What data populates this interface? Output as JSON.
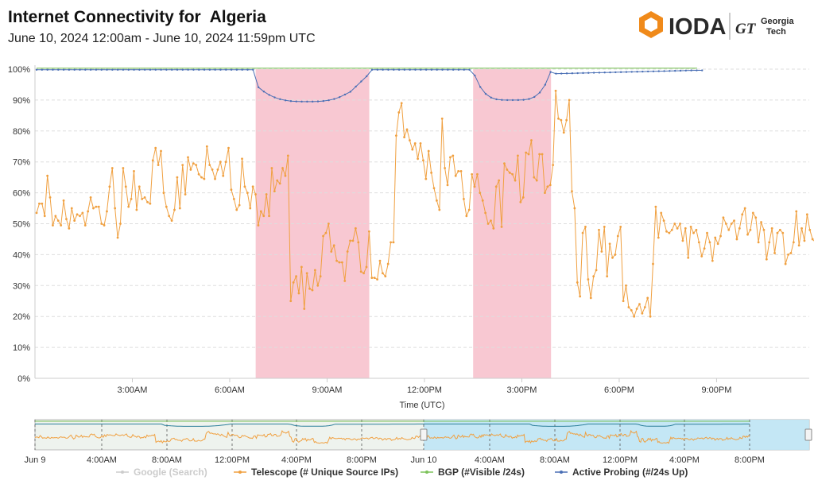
{
  "header": {
    "title": "Internet Connectivity for  Algeria",
    "subtitle": "June 10, 2024 12:00am - June 10, 2024 11:59pm UTC",
    "logo_text": "IODA",
    "partner_text_line1": "Georgia",
    "partner_text_line2": "Tech",
    "partner_mark": "GT"
  },
  "colors": {
    "telescope": "#f0a040",
    "bgp": "#7cc25a",
    "active_probing": "#4a6fb5",
    "google": "#bbbbbb",
    "outage": "#f8c8d2",
    "navigator_selection": "#bfe6f5",
    "logo_orange": "#f08a1a"
  },
  "chart_data": {
    "type": "line",
    "xlabel": "Time (UTC)",
    "ylabel": "",
    "ylim": [
      0,
      100
    ],
    "y_ticks": [
      "0%",
      "10%",
      "20%",
      "30%",
      "40%",
      "50%",
      "60%",
      "70%",
      "80%",
      "90%",
      "100%"
    ],
    "x_ticks": [
      "3:00AM",
      "6:00AM",
      "9:00AM",
      "12:00PM",
      "3:00PM",
      "6:00PM",
      "9:00PM"
    ],
    "x_tick_hours": [
      3,
      6,
      9,
      12,
      15,
      18,
      21
    ],
    "x_unit": "hours since June 10, 2024 12:00am UTC",
    "outage_periods_hours": [
      [
        6.8,
        10.3
      ],
      [
        13.5,
        15.9
      ]
    ],
    "series": [
      {
        "name": "Telescope (# Unique Source IPs)",
        "key": "telescope",
        "x_start_hours": 0.05,
        "x_step_hours": 0.0833,
        "values": [
          53.5,
          56.5,
          56.5,
          52.5,
          65.5,
          58.5,
          49.5,
          52.5,
          51,
          49.5,
          57.5,
          51.5,
          48.5,
          55,
          51,
          53,
          52.5,
          53.5,
          49.5,
          54,
          58.5,
          55,
          55.5,
          55.5,
          50,
          49.5,
          54,
          62,
          68,
          55,
          45.5,
          50,
          68,
          62,
          55.5,
          58,
          67,
          54.5,
          62,
          58,
          58.5,
          57,
          56.5,
          70.5,
          74.5,
          69,
          73.5,
          60,
          55.5,
          52.5,
          51,
          54.5,
          65,
          55,
          69,
          59.5,
          71.5,
          67.5,
          69.5,
          69,
          66,
          65,
          64.5,
          75,
          69,
          67.5,
          64.5,
          67.5,
          70,
          65.5,
          70,
          74.5,
          61,
          58,
          54.5,
          56,
          71,
          62,
          60,
          55,
          62,
          59.5,
          49.5,
          54,
          52.5,
          59.5,
          52.5,
          68,
          60.5,
          64,
          63,
          68,
          65.5,
          72,
          25,
          31,
          33,
          27.5,
          36,
          22.5,
          34,
          29,
          28.5,
          35,
          30,
          33,
          46,
          47,
          50,
          41,
          43,
          38,
          37.5,
          37.5,
          31.5,
          41,
          44.5,
          44.5,
          48.5,
          44,
          34.5,
          34,
          36,
          47.5,
          32.5,
          32.5,
          32,
          38,
          34,
          33,
          37,
          44,
          44,
          78.5,
          86,
          89,
          78,
          80.5,
          77,
          74,
          76,
          71,
          76,
          70.5,
          64.5,
          73.5,
          66.5,
          61.5,
          57.5,
          54.5,
          84,
          68,
          62.5,
          71.5,
          72,
          65.5,
          67,
          67,
          58,
          52.5,
          54.5,
          66,
          62,
          66,
          60,
          57.5,
          53.5,
          50,
          51,
          48.5,
          62,
          64,
          49,
          69.5,
          67.5,
          66.5,
          66,
          64,
          72,
          57,
          58.5,
          73,
          72.5,
          77,
          65,
          64,
          72.5,
          72.5,
          60,
          62,
          62.5,
          69,
          93,
          84,
          83.5,
          79.5,
          83.5,
          90,
          60.5,
          55,
          31,
          26.5,
          47,
          49,
          32,
          26,
          33,
          35,
          48,
          41,
          49,
          33,
          43.5,
          39,
          40,
          46,
          49,
          25,
          30,
          23,
          22,
          20,
          22.5,
          24,
          21,
          23,
          26,
          20,
          37,
          55.5,
          45.5,
          53.5,
          51,
          47.5,
          47,
          48,
          50,
          48.5,
          50,
          44.5,
          48.5,
          39,
          49,
          47,
          48,
          44,
          39.5,
          42,
          47,
          44,
          38,
          45.5,
          43.5,
          46,
          52,
          50,
          48,
          50,
          51,
          45,
          48.5,
          53,
          55,
          46.5,
          48,
          53.5,
          52,
          44,
          50.5,
          48,
          38.5,
          44,
          48.5,
          40.5,
          47,
          48,
          47,
          37,
          40,
          40.5,
          44,
          54,
          43,
          48.5,
          44.5,
          53,
          48,
          45,
          44,
          40,
          41.5,
          43,
          44,
          54.5,
          49,
          47.5,
          62,
          61,
          54,
          62.5,
          56,
          64.5,
          59.5
        ]
      },
      {
        "name": "BGP (#Visible /24s)",
        "key": "bgp",
        "x_start_hours": 0.05,
        "x_end_hours": 20.4,
        "values_constant": 100.3
      },
      {
        "name": "Active Probing (#/24s Up)",
        "key": "active_probing",
        "x_start_hours": 0.05,
        "x_step_hours": 0.1667,
        "values": [
          99.8,
          99.8,
          99.8,
          99.8,
          99.8,
          99.8,
          99.8,
          99.8,
          99.8,
          99.8,
          99.8,
          99.8,
          99.8,
          99.8,
          99.8,
          99.8,
          99.8,
          99.8,
          99.8,
          99.8,
          99.8,
          99.8,
          99.8,
          99.8,
          99.8,
          99.8,
          99.8,
          99.8,
          99.8,
          99.8,
          99.8,
          99.8,
          99.8,
          99.8,
          99.8,
          99.8,
          99.8,
          99.8,
          99.8,
          99.8,
          99.8,
          99.8,
          99.8,
          99.8,
          99.8,
          99.8,
          99.8,
          99.8,
          99.8,
          99.8,
          99.8,
          99.8,
          99.8,
          99.8,
          99.8,
          99.8,
          99.8,
          99.8,
          99.8,
          99.8,
          99.8,
          99.8,
          99.8,
          99.8,
          99.8,
          99.8,
          99.8,
          99.8,
          99.8,
          99.8,
          99.8,
          99.8,
          99.8,
          99.8,
          99.8,
          99.8,
          99.8,
          99.8,
          99.8,
          99.8,
          99.8,
          99.8,
          99.8,
          99.8,
          99.8,
          99.8,
          99.8,
          99.8,
          99.8,
          99.8,
          99.8,
          99.8,
          99.8,
          99.8,
          99.8,
          99.8,
          99.8,
          99.8,
          99.8,
          99.8,
          99.8,
          99.8,
          99.8,
          99.8,
          99.8,
          99.8,
          99.8,
          99.8,
          99.8,
          99.8,
          99.8,
          99.8,
          99.8,
          99.8,
          99.8,
          99.8,
          99.8,
          99.8,
          99.8,
          99.8,
          99.8,
          99.8,
          99.8,
          99.8
        ]
      },
      {
        "name": "Google (Search)",
        "key": "google",
        "disabled": true
      }
    ],
    "legend_position": "bottom",
    "grid": true
  },
  "navigator": {
    "x_ticks": [
      "Jun 9",
      "4:00AM",
      "8:00AM",
      "12:00PM",
      "4:00PM",
      "8:00PM",
      "Jun 10",
      "4:00AM",
      "8:00AM",
      "12:00PM",
      "4:00PM",
      "8:00PM"
    ]
  },
  "legend": [
    {
      "label": "Google (Search)",
      "key": "google"
    },
    {
      "label": "Telescope (# Unique Source IPs)",
      "key": "telescope"
    },
    {
      "label": "BGP (#Visible /24s)",
      "key": "bgp"
    },
    {
      "label": "Active Probing (#/24s Up)",
      "key": "active_probing"
    }
  ]
}
